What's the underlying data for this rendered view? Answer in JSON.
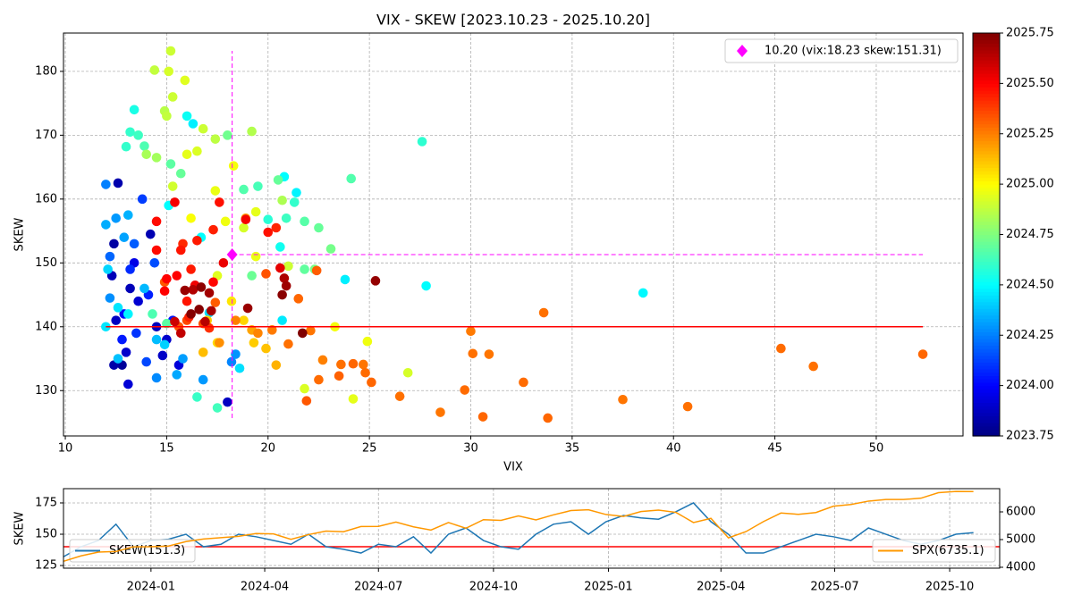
{
  "chart_data": [
    {
      "type": "scatter",
      "title": "VIX - SKEW [2023.10.23 - 2025.10.20]",
      "x_label": "VIX",
      "y_label": "SKEW",
      "x": [
        12.4,
        12.6,
        12.3,
        12.5,
        13,
        13.1,
        12.8,
        14.2,
        14.5,
        14.8,
        13.6,
        12.4,
        15,
        13.2,
        18,
        15.6,
        13.4,
        12.9,
        12.8,
        13.2,
        13.5,
        13.8,
        14.4,
        14.1,
        13.4,
        15.3,
        14,
        12.2,
        12,
        12.5,
        12.9,
        13.1,
        12.2,
        12.6,
        14.5,
        15.5,
        13.9,
        16.8,
        18.2,
        18.4,
        12,
        14.5,
        15.8,
        12.1,
        12.6,
        13.1,
        13.4,
        15.1,
        16,
        16.3,
        16.7,
        20.8,
        21.4,
        23.8,
        27.8,
        38.5,
        20.6,
        20.7,
        18.6,
        17.1,
        12,
        14.9,
        13.2,
        13.6,
        13.9,
        15.2,
        15.7,
        18,
        18.8,
        19.5,
        20,
        20.5,
        20.9,
        21.3,
        21.8,
        22.5,
        23.1,
        24.1,
        27.6,
        16.5,
        17.5,
        21.8,
        22.3,
        13,
        14.3,
        15,
        19.2,
        14.4,
        15.2,
        15.1,
        15.9,
        15.3,
        14.9,
        15,
        16,
        16.5,
        16.8,
        17.4,
        19.2,
        17.4,
        18.3,
        19.4,
        20.7,
        18.8,
        17.9,
        16.2,
        15.3,
        14,
        14.5,
        21,
        21.8,
        24.2,
        24.9,
        26.9,
        23.3,
        17.5,
        19.4,
        18.2,
        18.8,
        19.3,
        19.9,
        20.4,
        17,
        17.5,
        16.8,
        19.2,
        17.6,
        19.5,
        20.2,
        21,
        21.5,
        22.1,
        22.5,
        22.7,
        23.5,
        23.6,
        24.2,
        24.7,
        24.8,
        25.1,
        26.5,
        28.5,
        29.7,
        30,
        30.1,
        30.6,
        30.9,
        32.6,
        33.6,
        33.8,
        37.5,
        40.7,
        45.3,
        46.9,
        52.3,
        21.9,
        22.4,
        19.9,
        18.4,
        17.4,
        16.8,
        14.9,
        16,
        18.9,
        15.6,
        15.8,
        16.2,
        14.5,
        15,
        15.4,
        17.6,
        17.3,
        15.7,
        14.9,
        16.4,
        17.3,
        20,
        20.4,
        20.6,
        17.1,
        16.1,
        14.5,
        18.9,
        16,
        15.5,
        17.8,
        16.5,
        16.3,
        15.9,
        16.7,
        17.1,
        16.6,
        16.2,
        15.4,
        15.7,
        19,
        20.7,
        20.8,
        20.9,
        21.7,
        25.3,
        16.9,
        17.2
      ],
      "values": [
        153,
        162.5,
        148,
        141,
        136,
        131,
        134,
        154.5,
        140,
        135.5,
        144,
        134,
        138,
        146,
        128.2,
        134,
        150,
        142,
        138,
        149,
        139,
        160,
        150,
        145,
        153,
        141,
        134.5,
        151,
        162.3,
        157,
        154,
        157.5,
        144.5,
        135,
        132,
        132.5,
        146,
        131.7,
        134.5,
        135.7,
        156,
        138,
        135,
        149,
        143,
        142,
        174,
        159,
        173,
        171.8,
        154,
        163.5,
        161,
        147.4,
        146.4,
        145.3,
        152.5,
        141,
        133.5,
        142.2,
        140,
        137.2,
        170.5,
        170,
        168.3,
        165.5,
        164,
        170,
        161.5,
        162,
        156.8,
        163,
        157,
        159.5,
        156.5,
        155.5,
        152.2,
        163.2,
        169,
        129,
        127.3,
        149,
        149,
        168.2,
        142,
        140.5,
        148,
        180.2,
        183.2,
        180,
        178.6,
        176,
        173.8,
        173,
        167,
        167.5,
        171,
        169.4,
        170.6,
        161.3,
        165.2,
        158,
        159.8,
        155.5,
        156.5,
        157,
        162,
        167,
        166.5,
        149.5,
        130.3,
        128.7,
        137.7,
        132.8,
        140,
        148,
        151,
        144,
        141,
        137.5,
        136.6,
        134,
        141,
        137.5,
        136,
        139.5,
        137.5,
        139,
        139.5,
        137.3,
        144.4,
        139.4,
        131.7,
        134.8,
        132.3,
        134.1,
        134.2,
        134.1,
        132.8,
        131.3,
        129.1,
        126.6,
        130.1,
        139.3,
        135.8,
        125.9,
        135.7,
        131.3,
        142.2,
        125.7,
        128.6,
        127.5,
        136.6,
        133.8,
        135.7,
        128.4,
        148.8,
        148.3,
        141,
        143.8,
        140.5,
        147,
        141,
        157,
        140,
        153,
        149,
        152,
        147.5,
        159.5,
        159.5,
        155.2,
        152,
        145.6,
        146.5,
        147,
        154.8,
        155.5,
        149.2,
        139.8,
        141.5,
        156.5,
        156.8,
        144,
        148,
        150,
        153.5,
        145.8,
        145.7,
        146.2,
        145.3,
        142.7,
        142,
        140.8,
        139,
        142.9,
        145,
        147.6,
        146.4,
        139,
        147.2,
        140.8,
        142.5
      ],
      "color_values": [
        2023.82,
        2023.84,
        2023.86,
        2023.88,
        2023.9,
        2023.92,
        2023.8,
        2023.85,
        2023.87,
        2023.89,
        2023.91,
        2023.83,
        2023.9,
        2023.86,
        2023.88,
        2023.93,
        2023.95,
        2024.02,
        2024.05,
        2024.08,
        2024.1,
        2024.12,
        2024.15,
        2024.06,
        2024.18,
        2024.04,
        2024.14,
        2024.2,
        2024.25,
        2024.3,
        2024.32,
        2024.35,
        2024.28,
        2024.38,
        2024.27,
        2024.33,
        2024.36,
        2024.3,
        2024.26,
        2024.29,
        2024.34,
        2024.37,
        2024.31,
        2024.42,
        2024.45,
        2024.48,
        2024.55,
        2024.5,
        2024.52,
        2024.47,
        2024.5,
        2024.5,
        2024.48,
        2024.47,
        2024.5,
        2024.49,
        2024.53,
        2024.46,
        2024.44,
        2024.43,
        2024.45,
        2024.41,
        2024.6,
        2024.62,
        2024.65,
        2024.68,
        2024.7,
        2024.72,
        2024.66,
        2024.64,
        2024.58,
        2024.7,
        2024.62,
        2024.6,
        2024.67,
        2024.7,
        2024.73,
        2024.66,
        2024.59,
        2024.61,
        2024.63,
        2024.69,
        2024.74,
        2024.6,
        2024.65,
        2024.68,
        2024.71,
        2024.88,
        2024.9,
        2024.92,
        2024.94,
        2024.9,
        2024.86,
        2024.88,
        2024.95,
        2024.93,
        2024.9,
        2024.87,
        2024.85,
        2024.96,
        2024.98,
        2024.95,
        2024.84,
        2024.92,
        2024.97,
        2024.99,
        2024.91,
        2024.83,
        2024.82,
        2024.9,
        2024.93,
        2024.95,
        2024.97,
        2024.92,
        2024.98,
        2024.94,
        2024.96,
        2025.05,
        2025.08,
        2025.1,
        2025.12,
        2025.15,
        2025.1,
        2025.07,
        2025.13,
        2025.18,
        2025.22,
        2025.24,
        2025.26,
        2025.28,
        2025.3,
        2025.27,
        2025.29,
        2025.25,
        2025.31,
        2025.28,
        2025.3,
        2025.27,
        2025.29,
        2025.3,
        2025.28,
        2025.27,
        2025.29,
        2025.26,
        2025.28,
        2025.3,
        2025.27,
        2025.29,
        2025.28,
        2025.3,
        2025.27,
        2025.28,
        2025.29,
        2025.28,
        2025.3,
        2025.33,
        2025.32,
        2025.34,
        2025.25,
        2025.32,
        2025.35,
        2025.33,
        2025.36,
        2025.2,
        2025.34,
        2025.42,
        2025.45,
        2025.48,
        2025.5,
        2025.52,
        2025.47,
        2025.44,
        2025.46,
        2025.5,
        2025.53,
        2025.49,
        2025.47,
        2025.43,
        2025.55,
        2025.41,
        2025.44,
        2025.48,
        2025.52,
        2025.46,
        2025.5,
        2025.54,
        2025.45,
        2025.65,
        2025.7,
        2025.72,
        2025.68,
        2025.74,
        2025.74,
        2025.6,
        2025.62,
        2025.7,
        2025.73,
        2025.66,
        2025.69,
        2025.75,
        2025.71,
        2025.64,
        2025.67
      ],
      "colormap": "jet",
      "clim": [
        2023.75,
        2025.75
      ],
      "cticks": [
        2023.75,
        {
          "value": 2024.0,
          "label": "2024.00"
        },
        2024.25,
        {
          "value": 2024.5,
          "label": "2024.50"
        },
        2024.75,
        {
          "value": 2025.0,
          "label": "2025.00"
        },
        2025.25,
        {
          "value": 2025.5,
          "label": "2025.50"
        },
        2025.75
      ],
      "xlim": [
        9.91,
        54.28
      ],
      "ylim": [
        122.9,
        186.0
      ],
      "xticks": [
        10,
        15,
        20,
        25,
        30,
        35,
        40,
        45,
        50
      ],
      "yticks": [
        130,
        140,
        150,
        160,
        170,
        180
      ],
      "grid": true,
      "hline": {
        "value": 140,
        "color": "#ff0000"
      },
      "highlight": {
        "label": "10.20 (vix:18.23 skew:151.31)",
        "x": 18.23,
        "y": 151.31,
        "color": "#ff00ff"
      },
      "legend": "upper right"
    },
    {
      "type": "line",
      "y_label": "SKEW",
      "x": [
        "2023-10-23",
        "2023-11-06",
        "2023-11-20",
        "2023-12-04",
        "2023-12-18",
        "2024-01-01",
        "2024-01-15",
        "2024-01-29",
        "2024-02-12",
        "2024-02-26",
        "2024-03-11",
        "2024-03-25",
        "2024-04-08",
        "2024-04-22",
        "2024-05-06",
        "2024-05-20",
        "2024-06-03",
        "2024-06-17",
        "2024-07-01",
        "2024-07-15",
        "2024-07-29",
        "2024-08-12",
        "2024-08-26",
        "2024-09-09",
        "2024-09-23",
        "2024-10-07",
        "2024-10-21",
        "2024-11-04",
        "2024-11-18",
        "2024-12-02",
        "2024-12-16",
        "2024-12-30",
        "2025-01-13",
        "2025-01-27",
        "2025-02-10",
        "2025-02-24",
        "2025-03-10",
        "2025-03-24",
        "2025-04-07",
        "2025-04-21",
        "2025-05-05",
        "2025-05-19",
        "2025-06-02",
        "2025-06-16",
        "2025-06-30",
        "2025-07-14",
        "2025-07-28",
        "2025-08-11",
        "2025-08-25",
        "2025-09-08",
        "2025-09-22",
        "2025-10-06",
        "2025-10-20"
      ],
      "series": [
        {
          "name": "SKEW(151.3)",
          "color": "#1f77b4",
          "legend": "lower left",
          "values": [
            132,
            140,
            145,
            158,
            140,
            145,
            146,
            150,
            140,
            142,
            150,
            148,
            145,
            142,
            150,
            140,
            138,
            135,
            142,
            140,
            148,
            135,
            150,
            155,
            145,
            140,
            138,
            150,
            158,
            160,
            150,
            160,
            165,
            163,
            162,
            168,
            175,
            160,
            150,
            135,
            135,
            140,
            145,
            150,
            148,
            145,
            155,
            150,
            145,
            142,
            145,
            150,
            151.3
          ]
        },
        {
          "name": "SPX(6735.1)",
          "color": "#ff9800",
          "axis": "y2",
          "legend": "lower right",
          "values": [
            4217,
            4411,
            4547,
            4569,
            4740,
            4742,
            4766,
            4928,
            5022,
            5070,
            5117,
            5218,
            5204,
            5011,
            5180,
            5308,
            5283,
            5473,
            5475,
            5631,
            5459,
            5344,
            5616,
            5408,
            5718,
            5695,
            5853,
            5712,
            5893,
            6047,
            6075,
            5906,
            5836,
            6012,
            6066,
            5983,
            5615,
            5767,
            5062,
            5287,
            5650,
            5958,
            5911,
            5977,
            6205,
            6268,
            6389,
            6449,
            6446,
            6495,
            6693,
            6740,
            6735.1
          ]
        }
      ],
      "xlim": [
        "2023-10-23",
        "2025-11-10"
      ],
      "xticks": [
        {
          "value": "2024-01-01",
          "label": "2024-01"
        },
        {
          "value": "2024-04-01",
          "label": "2024-04"
        },
        {
          "value": "2024-07-01",
          "label": "2024-07"
        },
        {
          "value": "2024-10-01",
          "label": "2024-10"
        },
        {
          "value": "2025-01-01",
          "label": "2025-01"
        },
        {
          "value": "2025-04-01",
          "label": "2025-04"
        },
        {
          "value": "2025-07-01",
          "label": "2025-07"
        },
        {
          "value": "2025-10-01",
          "label": "2025-10"
        }
      ],
      "ylim": [
        122.9,
        186.4
      ],
      "yticks": [
        125,
        150,
        175
      ],
      "y2lim": [
        3968,
        6839
      ],
      "y2ticks": [
        4000,
        5000,
        6000
      ],
      "grid": true,
      "hline": {
        "value": 140,
        "color": "#ff0000"
      }
    }
  ]
}
